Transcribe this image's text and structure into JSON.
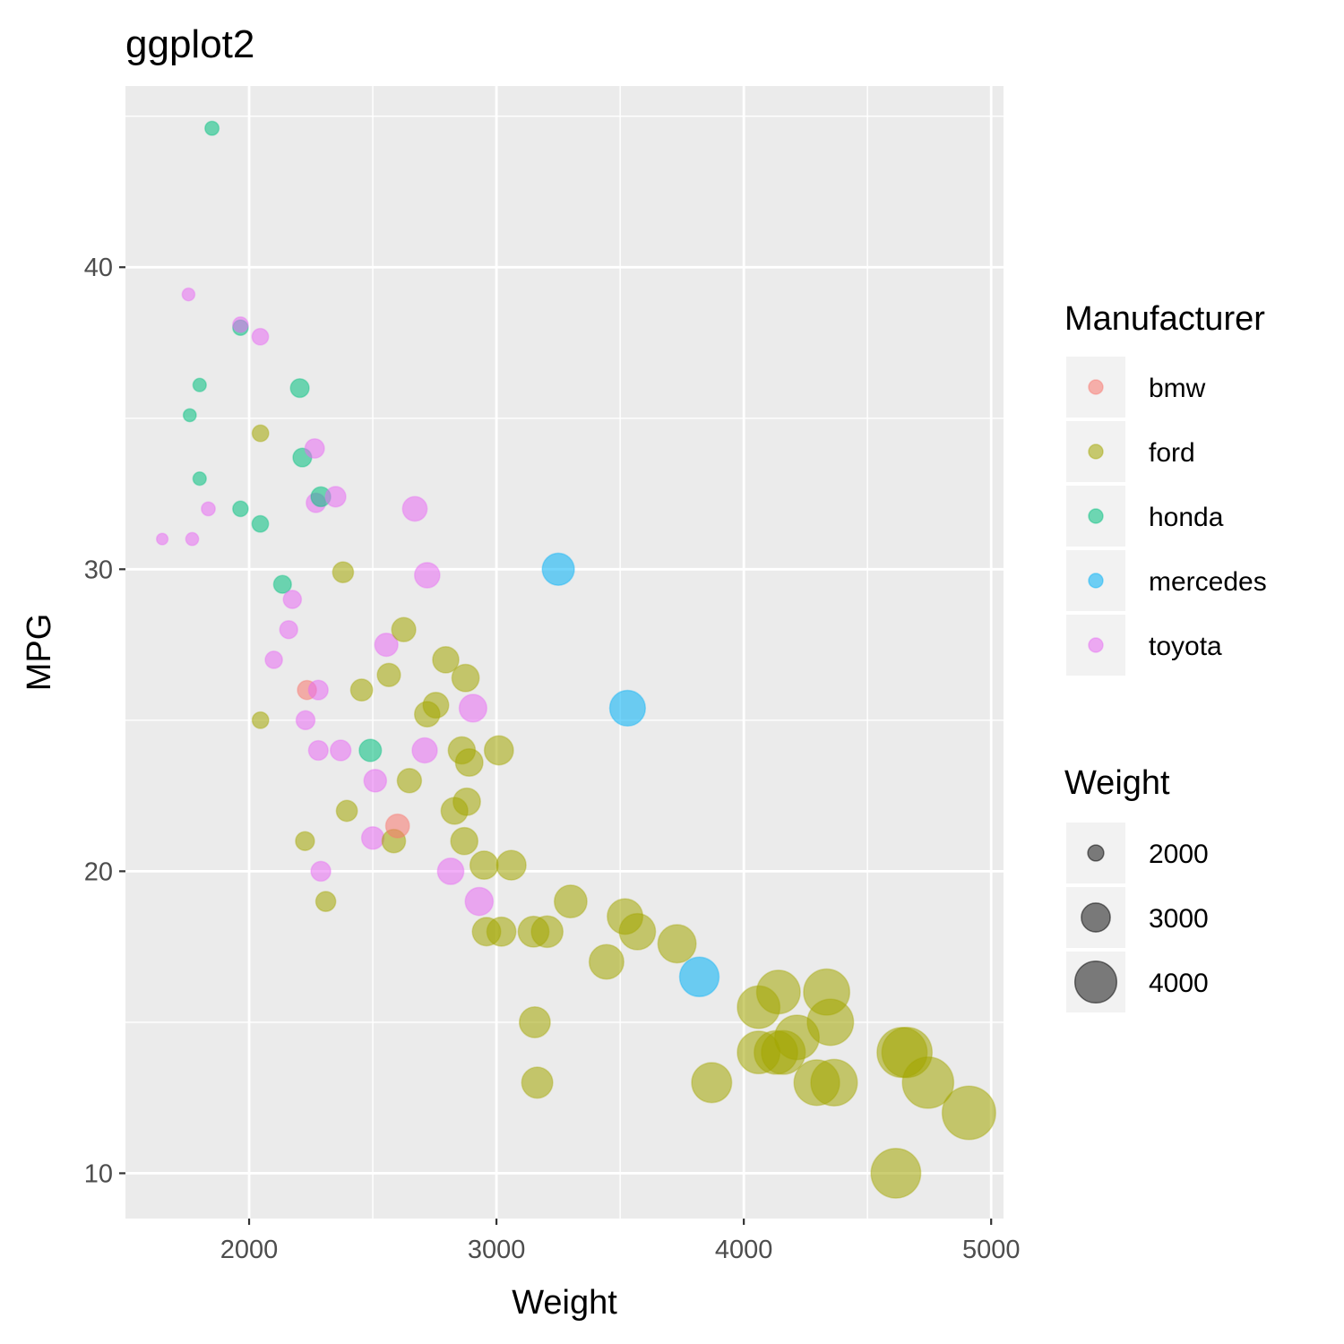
{
  "chart_data": {
    "type": "scatter",
    "title": "ggplot2",
    "xlabel": "Weight",
    "ylabel": "MPG",
    "xlim": [
      1500,
      5050
    ],
    "ylim": [
      8.5,
      46
    ],
    "x_ticks": [
      2000,
      3000,
      4000,
      5000
    ],
    "y_ticks": [
      10,
      20,
      30,
      40
    ],
    "grid": true,
    "size_variable": "Weight",
    "legend_placement": "right",
    "colors": {
      "bmw": "#F8766D",
      "ford": "#A3A500",
      "honda": "#00BF7D",
      "mercedes": "#00B0F6",
      "toyota": "#E76BF3"
    },
    "legend": {
      "color_title": "Manufacturer",
      "color_items": [
        "bmw",
        "ford",
        "honda",
        "mercedes",
        "toyota"
      ],
      "size_title": "Weight",
      "size_items": [
        "2000",
        "3000",
        "4000"
      ]
    },
    "series": [
      {
        "name": "bmw",
        "points": [
          [
            2234,
            26
          ],
          [
            2600,
            21.5
          ]
        ]
      },
      {
        "name": "ford",
        "points": [
          [
            2046,
            34.5
          ],
          [
            2046,
            25
          ],
          [
            2380,
            29.9
          ],
          [
            2226,
            21
          ],
          [
            2310,
            19
          ],
          [
            2395,
            22
          ],
          [
            2455,
            26
          ],
          [
            2565,
            26.5
          ],
          [
            2585,
            21
          ],
          [
            2625,
            28
          ],
          [
            2648,
            23
          ],
          [
            2720,
            25.2
          ],
          [
            2755,
            25.5
          ],
          [
            2795,
            27
          ],
          [
            2875,
            26.4
          ],
          [
            2860,
            24
          ],
          [
            2890,
            23.6
          ],
          [
            2830,
            22
          ],
          [
            2880,
            22.3
          ],
          [
            2870,
            21
          ],
          [
            2950,
            20.2
          ],
          [
            3060,
            20.2
          ],
          [
            3010,
            24
          ],
          [
            2960,
            18
          ],
          [
            3020,
            18
          ],
          [
            3150,
            18
          ],
          [
            3205,
            18
          ],
          [
            3300,
            19
          ],
          [
            3445,
            17
          ],
          [
            3520,
            18.5
          ],
          [
            3570,
            18
          ],
          [
            3730,
            17.6
          ],
          [
            3155,
            15
          ],
          [
            3165,
            13
          ],
          [
            3870,
            13
          ],
          [
            4060,
            14
          ],
          [
            4060,
            15.5
          ],
          [
            4140,
            16
          ],
          [
            4130,
            14
          ],
          [
            4160,
            14
          ],
          [
            4215,
            14.5
          ],
          [
            4295,
            13
          ],
          [
            4335,
            16
          ],
          [
            4350,
            15
          ],
          [
            4365,
            13
          ],
          [
            4615,
            10
          ],
          [
            4640,
            14
          ],
          [
            4660,
            14
          ],
          [
            4745,
            13
          ],
          [
            4910,
            12
          ]
        ]
      },
      {
        "name": "honda",
        "points": [
          [
            1850,
            44.6
          ],
          [
            1965,
            38
          ],
          [
            1800,
            36.1
          ],
          [
            2205,
            36
          ],
          [
            1760,
            35.1
          ],
          [
            1800,
            33
          ],
          [
            2215,
            33.7
          ],
          [
            2290,
            32.4
          ],
          [
            1965,
            32
          ],
          [
            2045,
            31.5
          ],
          [
            2135,
            29.5
          ],
          [
            2490,
            24
          ]
        ]
      },
      {
        "name": "mercedes",
        "points": [
          [
            3250,
            30
          ],
          [
            3530,
            25.4
          ],
          [
            3820,
            16.5
          ]
        ]
      },
      {
        "name": "toyota",
        "points": [
          [
            1755,
            39.1
          ],
          [
            1965,
            38.1
          ],
          [
            2045,
            37.7
          ],
          [
            2265,
            34
          ],
          [
            2350,
            32.4
          ],
          [
            2270,
            32.2
          ],
          [
            1835,
            32
          ],
          [
            1770,
            31
          ],
          [
            1649,
            31
          ],
          [
            2670,
            32
          ],
          [
            2720,
            29.8
          ],
          [
            2175,
            29
          ],
          [
            2160,
            28
          ],
          [
            2100,
            27
          ],
          [
            2555,
            27.5
          ],
          [
            2280,
            26
          ],
          [
            2228,
            25
          ],
          [
            2280,
            24
          ],
          [
            2370,
            24
          ],
          [
            2710,
            24
          ],
          [
            2905,
            25.4
          ],
          [
            2510,
            23
          ],
          [
            2500,
            21.1
          ],
          [
            2290,
            20
          ],
          [
            2815,
            20
          ],
          [
            2930,
            19
          ]
        ]
      }
    ]
  }
}
